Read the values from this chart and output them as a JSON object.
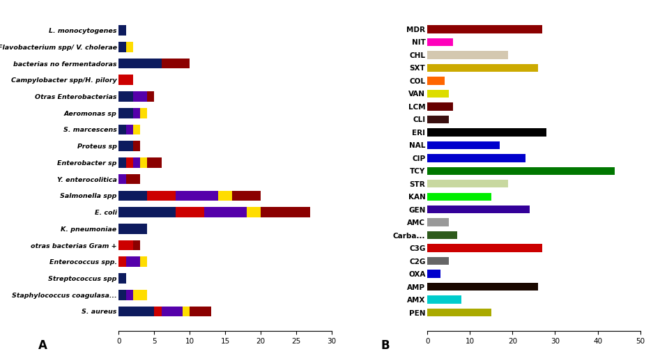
{
  "chart_A": {
    "categories": [
      "S. aureus",
      "Staphylococcus coagulasa...",
      "Streptococcus spp",
      "Enterococcus spp.",
      "otras bacterias Gram +",
      "K. pneumoniae",
      "E. coli",
      "Salmonella spp",
      "Y. enterocolitica",
      "Enterobacter sp",
      "Proteus sp",
      "S. marcescens",
      "Aeromonas sp",
      "Otras Enterobacterias",
      "Campylobacter spp/H. pilory",
      "bacterias no fermentadoras",
      "Flavobacterium spp/ V. cholerae",
      "L. monocytogenes"
    ],
    "africa": [
      5,
      1,
      1,
      0,
      0,
      4,
      8,
      4,
      0,
      1,
      2,
      1,
      2,
      2,
      0,
      6,
      1,
      1
    ],
    "norteamerica": [
      1,
      0,
      0,
      1,
      2,
      0,
      4,
      4,
      0,
      1,
      0,
      0,
      0,
      0,
      2,
      0,
      0,
      0
    ],
    "europa": [
      3,
      1,
      0,
      2,
      0,
      0,
      6,
      6,
      1,
      1,
      0,
      1,
      1,
      2,
      0,
      0,
      0,
      0
    ],
    "latinoamerica": [
      1,
      2,
      0,
      1,
      0,
      0,
      2,
      2,
      0,
      1,
      0,
      1,
      1,
      0,
      0,
      0,
      1,
      0
    ],
    "asia": [
      3,
      0,
      0,
      0,
      1,
      0,
      7,
      4,
      2,
      2,
      1,
      0,
      0,
      1,
      0,
      4,
      0,
      0
    ],
    "colors": {
      "africa": "#0d1b5e",
      "norteamerica": "#cc0000",
      "europa": "#5500aa",
      "latinoamerica": "#ffdd00",
      "asia": "#8b0000"
    },
    "xlim": 30,
    "xticks": [
      0,
      5,
      10,
      15,
      20,
      25,
      30
    ]
  },
  "chart_B": {
    "labels": [
      "PEN",
      "AMX",
      "AMP",
      "OXA",
      "C2G",
      "C3G",
      "Carba...",
      "AMC",
      "GEN",
      "KAN",
      "STR",
      "TCY",
      "CIP",
      "NAL",
      "ERI",
      "CLI",
      "LCM",
      "VAN",
      "COL",
      "SXT",
      "CHL",
      "NIT",
      "MDR"
    ],
    "values": [
      15,
      8,
      26,
      3,
      5,
      27,
      7,
      5,
      24,
      15,
      19,
      44,
      23,
      17,
      28,
      5,
      6,
      5,
      4,
      26,
      19,
      6,
      27
    ],
    "colors": [
      "#aaaa00",
      "#00cccc",
      "#1a0800",
      "#0000cc",
      "#666666",
      "#cc0000",
      "#2d5a1b",
      "#999999",
      "#330099",
      "#00ee00",
      "#c8d8a0",
      "#007700",
      "#0000cc",
      "#0000cc",
      "#000000",
      "#3a1010",
      "#660000",
      "#dddd00",
      "#ff6600",
      "#ccaa00",
      "#d4c8b0",
      "#ff00bb",
      "#8b0000"
    ],
    "xlim": 50,
    "xticks": [
      0,
      10,
      20,
      30,
      40,
      50
    ]
  }
}
